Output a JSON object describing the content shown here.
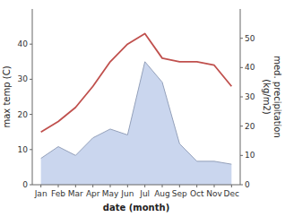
{
  "chart_data": {
    "type": "line",
    "x_label": "date (month)",
    "y_label": "max temp (C)",
    "y2_label": "med. precipitation\n(kg/m2)",
    "categories": [
      "Jan",
      "Feb",
      "Mar",
      "Apr",
      "May",
      "Jun",
      "Jul",
      "Aug",
      "Sep",
      "Oct",
      "Nov",
      "Dec"
    ],
    "series": [
      {
        "type": "area",
        "axis": "y2",
        "color": "#b8c8e8",
        "values": [
          9,
          13,
          10,
          16,
          19,
          17,
          42,
          35,
          14,
          8,
          8,
          7
        ]
      },
      {
        "type": "line",
        "color": "#c0504d",
        "values": [
          15,
          18,
          22,
          28,
          35,
          40,
          43,
          36,
          35,
          35,
          34,
          28
        ]
      }
    ],
    "ylim": [
      0,
      50
    ],
    "yticks": [
      0,
      10,
      20,
      30,
      40
    ],
    "y2lim": [
      0,
      60
    ],
    "y2ticks": [
      0,
      10,
      20,
      30,
      40,
      50
    ],
    "grid": false
  }
}
